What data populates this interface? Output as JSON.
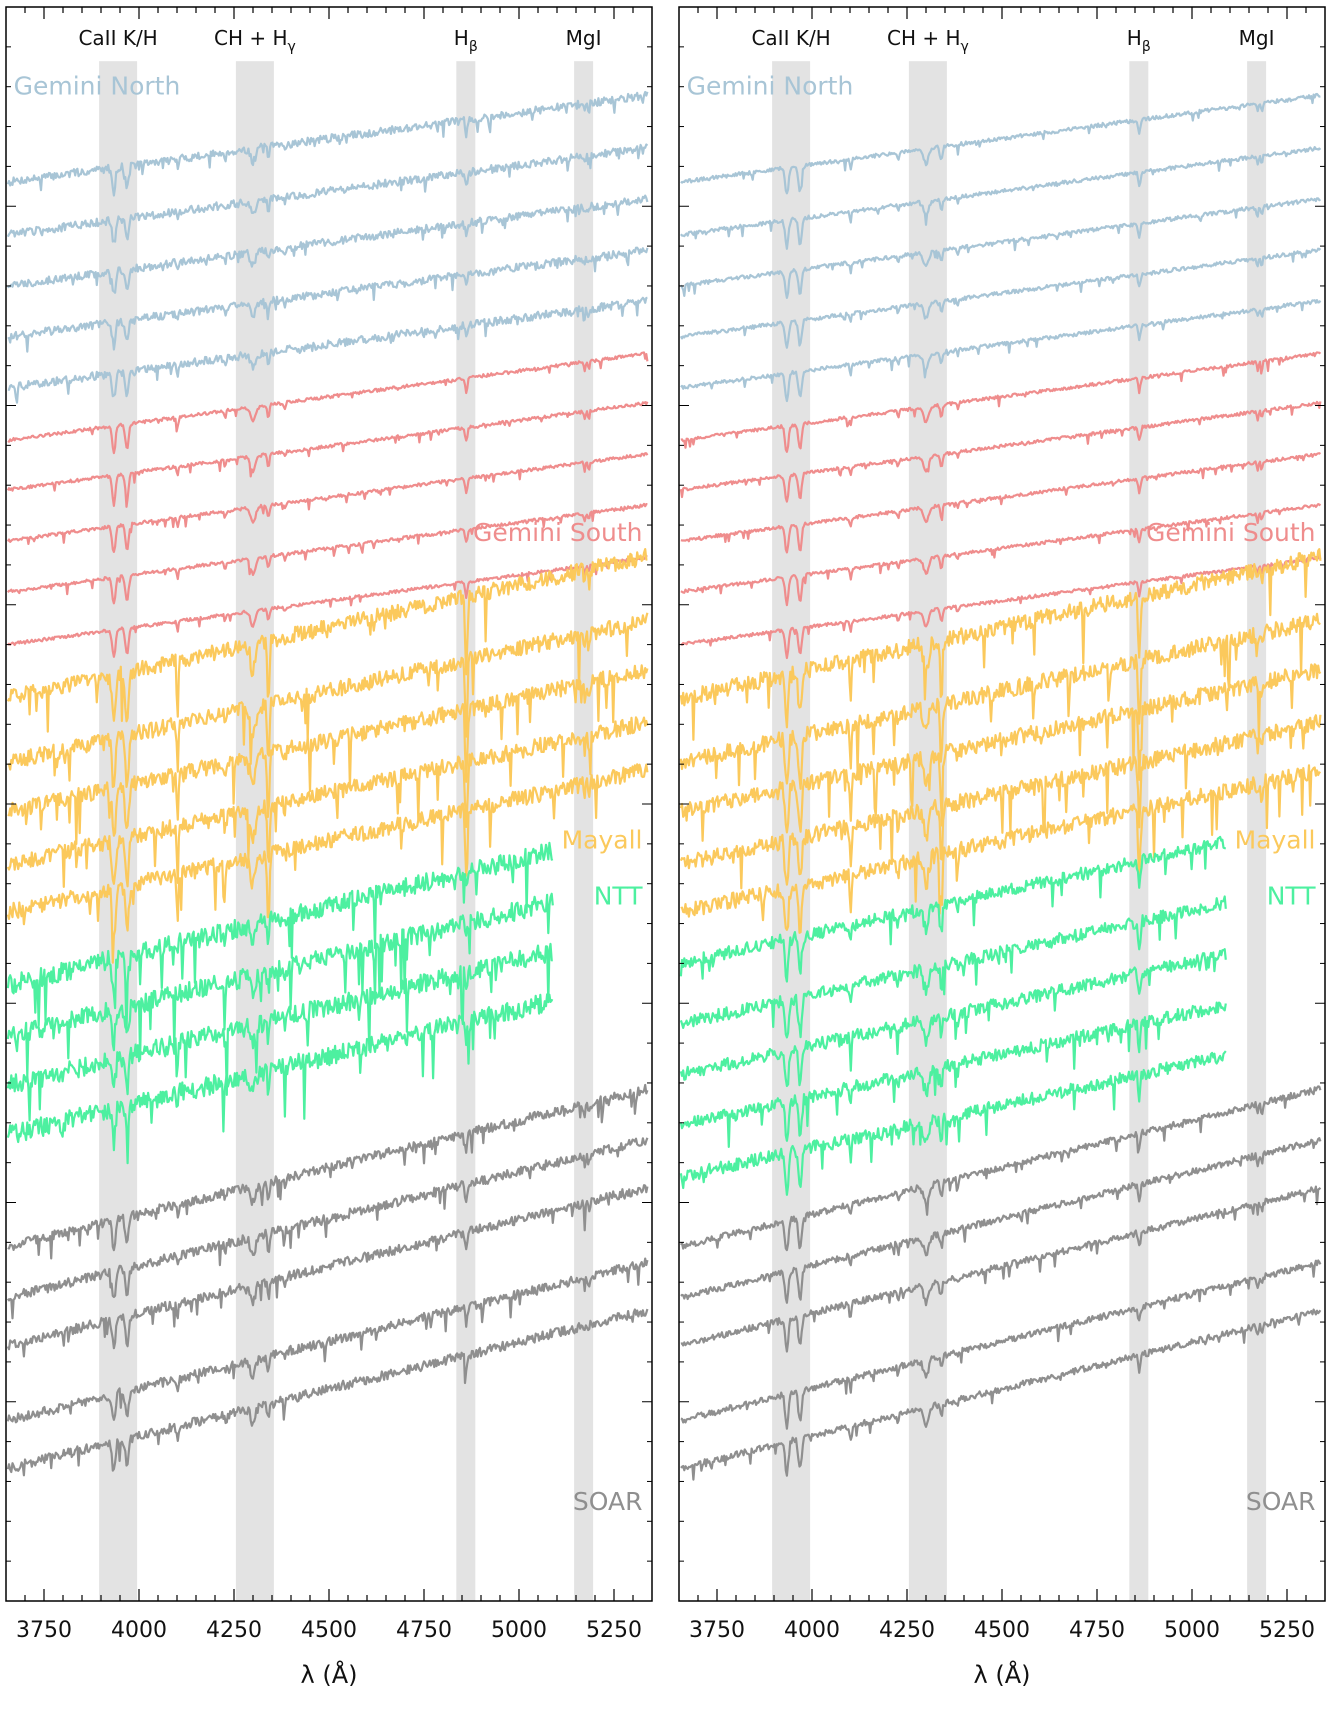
{
  "chart_data": [
    {
      "type": "line",
      "panel": "left",
      "xlabel": "λ (Å)",
      "xlim": [
        3650,
        5350
      ],
      "xticks": [
        3750,
        4000,
        4250,
        4500,
        4750,
        5000,
        5250
      ],
      "ylim": [
        0,
        1
      ],
      "y_ticks_labeled": false,
      "bands": [
        {
          "label": "CaII K/H",
          "sub": "",
          "range": [
            3895,
            3995
          ]
        },
        {
          "label": "CH + H",
          "sub": "γ",
          "range": [
            4255,
            4355
          ]
        },
        {
          "label": "H",
          "sub": "β",
          "range": [
            4835,
            4885
          ]
        },
        {
          "label": "MgI",
          "sub": "",
          "range": [
            5145,
            5195
          ]
        }
      ],
      "groups": [
        {
          "name": "Gemini North",
          "color": "#a8c5d6",
          "label_x": 3670,
          "label_y": 0.945,
          "label_anchor": "start",
          "n_spectra": 5,
          "x_end": 5340,
          "baselines": [
            0.89,
            0.857,
            0.825,
            0.793,
            0.761
          ],
          "slope": 0.055,
          "noise": 0.0025,
          "depth": 0.015,
          "metal": 0.003,
          "balmer": 0.004
        },
        {
          "name": "Gemini South",
          "color": "#ef8d8d",
          "label_x": 5325,
          "label_y": 0.665,
          "label_anchor": "end",
          "n_spectra": 5,
          "x_end": 5340,
          "baselines": [
            0.728,
            0.697,
            0.665,
            0.633,
            0.6
          ],
          "slope": 0.055,
          "noise": 0.001,
          "depth": 0.017,
          "metal": 0.002,
          "balmer": 0.004
        },
        {
          "name": "Mayall",
          "color": "#fbc95c",
          "label_x": 5325,
          "label_y": 0.472,
          "label_anchor": "end",
          "n_spectra": 5,
          "x_end": 5340,
          "baselines": [
            0.566,
            0.526,
            0.495,
            0.462,
            0.432
          ],
          "slope": 0.09,
          "noise": 0.005,
          "depth": 0.032,
          "metal": 0.01,
          "balmer": 0.045
        },
        {
          "name": "NTT",
          "color": "#4df0a0",
          "label_x": 5325,
          "label_y": 0.437,
          "label_anchor": "end",
          "n_spectra": 4,
          "x_end": 5090,
          "baselines": [
            0.386,
            0.354,
            0.323,
            0.292
          ],
          "slope": 0.1,
          "noise": 0.006,
          "depth": 0.02,
          "metal": 0.012,
          "balmer": 0.012
        },
        {
          "name": "SOAR",
          "color": "#8f8f8f",
          "label_x": 5325,
          "label_y": 0.057,
          "label_anchor": "end",
          "n_spectra": 5,
          "x_end": 5340,
          "baselines": [
            0.222,
            0.19,
            0.16,
            0.113,
            0.083
          ],
          "slope": 0.1,
          "noise": 0.003,
          "depth": 0.018,
          "metal": 0.004,
          "balmer": 0.012
        }
      ]
    },
    {
      "type": "line",
      "panel": "right",
      "xlabel": "λ (Å)",
      "xlim": [
        3650,
        5350
      ],
      "xticks": [
        3750,
        4000,
        4250,
        4500,
        4750,
        5000,
        5250
      ],
      "ylim": [
        0,
        1
      ],
      "y_ticks_labeled": false,
      "bands": [
        {
          "label": "CaII K/H",
          "sub": "",
          "range": [
            3895,
            3995
          ]
        },
        {
          "label": "CH + H",
          "sub": "γ",
          "range": [
            4255,
            4355
          ]
        },
        {
          "label": "H",
          "sub": "β",
          "range": [
            4835,
            4885
          ]
        },
        {
          "label": "MgI",
          "sub": "",
          "range": [
            5145,
            5195
          ]
        }
      ],
      "groups": [
        {
          "name": "Gemini North",
          "color": "#a8c5d6",
          "label_x": 3670,
          "label_y": 0.945,
          "label_anchor": "start",
          "n_spectra": 5,
          "x_end": 5340,
          "baselines": [
            0.89,
            0.857,
            0.825,
            0.793,
            0.761
          ],
          "slope": 0.055,
          "noise": 0.0012,
          "depth": 0.017,
          "metal": 0.002,
          "balmer": 0.006
        },
        {
          "name": "Gemini South",
          "color": "#ef8d8d",
          "label_x": 5325,
          "label_y": 0.665,
          "label_anchor": "end",
          "n_spectra": 5,
          "x_end": 5340,
          "baselines": [
            0.728,
            0.697,
            0.665,
            0.633,
            0.6
          ],
          "slope": 0.055,
          "noise": 0.001,
          "depth": 0.017,
          "metal": 0.002,
          "balmer": 0.004
        },
        {
          "name": "Mayall",
          "color": "#fbc95c",
          "label_x": 5325,
          "label_y": 0.472,
          "label_anchor": "end",
          "n_spectra": 5,
          "x_end": 5340,
          "baselines": [
            0.566,
            0.526,
            0.495,
            0.462,
            0.432
          ],
          "slope": 0.09,
          "noise": 0.005,
          "depth": 0.03,
          "metal": 0.01,
          "balmer": 0.04
        },
        {
          "name": "NTT",
          "color": "#4df0a0",
          "label_x": 5325,
          "label_y": 0.437,
          "label_anchor": "end",
          "n_spectra": 5,
          "x_end": 5090,
          "baselines": [
            0.4,
            0.362,
            0.33,
            0.298,
            0.266
          ],
          "slope": 0.09,
          "noise": 0.004,
          "depth": 0.024,
          "metal": 0.006,
          "balmer": 0.016
        },
        {
          "name": "SOAR",
          "color": "#8f8f8f",
          "label_x": 5325,
          "label_y": 0.057,
          "label_anchor": "end",
          "n_spectra": 5,
          "x_end": 5340,
          "baselines": [
            0.222,
            0.19,
            0.16,
            0.113,
            0.083
          ],
          "slope": 0.1,
          "noise": 0.002,
          "depth": 0.02,
          "metal": 0.003,
          "balmer": 0.01
        }
      ]
    }
  ]
}
